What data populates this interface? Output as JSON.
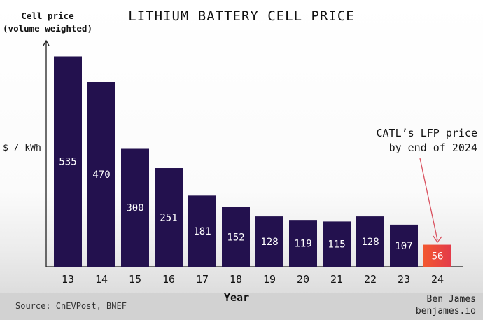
{
  "title": "LITHIUM BATTERY CELL PRICE",
  "y_title": [
    "Cell price",
    "(volume weighted)"
  ],
  "unit_label": "$ / kWh",
  "x_title": "Year",
  "annotation": [
    "CATL’s LFP price",
    "by end of 2024"
  ],
  "source": "Source: CnEVPost, BNEF",
  "credit": [
    "Ben James",
    "benjames.io"
  ],
  "colors": {
    "bar": "#23114e",
    "bar_highlight": "#e33a4a",
    "arrow": "#d9505e",
    "axis": "#222222"
  },
  "chart_data": {
    "type": "bar",
    "title": "LITHIUM BATTERY CELL PRICE",
    "xlabel": "Year",
    "ylabel": "$ / kWh",
    "categories": [
      "13",
      "14",
      "15",
      "16",
      "17",
      "18",
      "19",
      "20",
      "21",
      "22",
      "23",
      "24"
    ],
    "values": [
      535,
      470,
      300,
      251,
      181,
      152,
      128,
      119,
      115,
      128,
      107,
      56
    ],
    "highlight_category": "24",
    "grid": false,
    "legend": "none"
  }
}
